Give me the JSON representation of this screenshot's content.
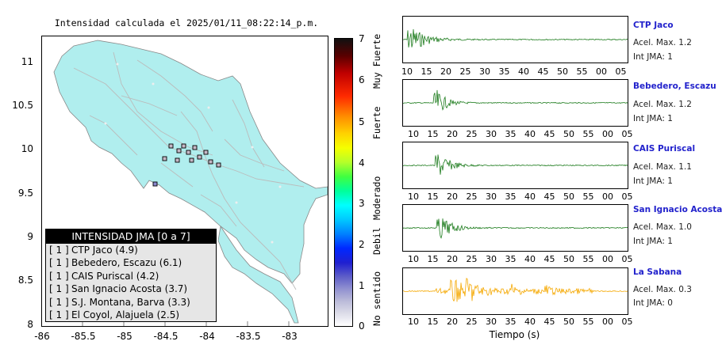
{
  "map": {
    "title": "Intensidad calculada el 2025/01/11_08:22:14_p.m.",
    "lat_ticks": [
      "11",
      "10.5",
      "10",
      "9.5",
      "9",
      "8.5",
      "8"
    ],
    "lon_ticks": [
      "-86",
      "-85.5",
      "-85",
      "-84.5",
      "-84",
      "-83.5",
      "-83"
    ],
    "land_color": "#b0eeee",
    "road_color": "#bbbbbb"
  },
  "colorbar": {
    "numbers": [
      "7",
      "6",
      "5",
      "4",
      "3",
      "2",
      "1",
      "0"
    ],
    "levels": [
      "Muy Fuerte",
      "Fuerte",
      "Moderado",
      "Debil",
      "No sentido"
    ]
  },
  "legend": {
    "header": "INTENSIDAD JMA [0 a 7]",
    "rows": [
      {
        "bracket": "[ 1 ]",
        "text": "CTP Jaco (4.9)"
      },
      {
        "bracket": "[ 1 ]",
        "text": "Bebedero, Escazu (6.1)"
      },
      {
        "bracket": "[ 1 ]",
        "text": "CAIS Puriscal (4.2)"
      },
      {
        "bracket": "[ 1 ]",
        "text": "San Ignacio Acosta (3.7)"
      },
      {
        "bracket": "[ 1 ]",
        "text": "S.J. Montana, Barva (3.3)"
      },
      {
        "bracket": "[ 1 ]",
        "text": "El Coyol, Alajuela (2.5)"
      }
    ]
  },
  "traces": {
    "time_ticks": [
      "10",
      "15",
      "20",
      "25",
      "30",
      "35",
      "40",
      "45",
      "50",
      "55",
      "00",
      "05"
    ],
    "xlabel": "Tiempo (s)",
    "stations": [
      {
        "name": "CTP Jaco",
        "accel": "Acel. Max. 1.2",
        "jma": "Int JMA: 1",
        "color": "#1a7a1a"
      },
      {
        "name": "Bebedero, Escazu",
        "accel": "Acel. Max. 1.2",
        "jma": "Int JMA: 1",
        "color": "#1a7a1a"
      },
      {
        "name": "CAIS Puriscal",
        "accel": "Acel. Max. 1.1",
        "jma": "Int JMA: 1",
        "color": "#1a7a1a"
      },
      {
        "name": "San Ignacio Acosta",
        "accel": "Acel. Max. 1.0",
        "jma": "Int JMA: 1",
        "color": "#1a7a1a"
      },
      {
        "name": "La Sabana",
        "accel": "Acel. Max. 0.3",
        "jma": "Int JMA: 0",
        "color": "#f5a800"
      }
    ]
  }
}
